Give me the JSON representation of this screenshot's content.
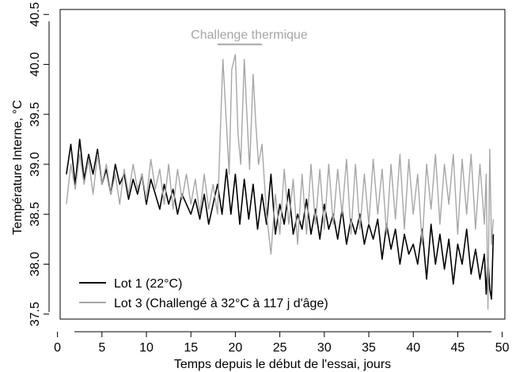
{
  "chart_data": {
    "type": "line",
    "title": "",
    "xlabel": "Temps depuis le début de l'essai, jours",
    "ylabel": "Température Interne, °C",
    "xlim": [
      0.3,
      50.3
    ],
    "ylim": [
      37.45,
      40.55
    ],
    "x_ticks": [
      0,
      5,
      10,
      15,
      20,
      25,
      30,
      35,
      40,
      45,
      50
    ],
    "y_ticks": [
      37.5,
      38.0,
      38.5,
      39.0,
      39.5,
      40.0,
      40.5
    ],
    "x_tick_labels": [
      "0",
      "5",
      "10",
      "15",
      "20",
      "25",
      "30",
      "35",
      "40",
      "45",
      "50"
    ],
    "y_tick_labels": [
      "37.5",
      "38.0",
      "38.5",
      "39.0",
      "39.5",
      "40.0",
      "40.5"
    ],
    "grid": false,
    "legend_position": "bottom-left",
    "annotation": {
      "text": "Challenge thermique",
      "x_start": 18,
      "x_end": 23,
      "y": 40.2,
      "color": "#a6a6a6"
    },
    "series": [
      {
        "name": "Lot 1 (22°C)",
        "color": "#000000",
        "x": [
          1,
          1.5,
          2,
          2.5,
          3,
          3.5,
          4,
          4.5,
          5,
          5.5,
          6,
          6.5,
          7,
          7.5,
          8,
          8.5,
          9,
          9.5,
          10,
          10.5,
          11,
          11.5,
          12,
          12.5,
          13,
          13.5,
          14,
          14.5,
          15,
          15.5,
          16,
          16.5,
          17,
          17.5,
          18,
          18.5,
          19,
          19.5,
          20,
          20.5,
          21,
          21.5,
          22,
          22.5,
          23,
          23.5,
          24,
          24.5,
          25,
          25.5,
          26,
          26.5,
          27,
          27.5,
          28,
          28.5,
          29,
          29.5,
          30,
          30.5,
          31,
          31.5,
          32,
          32.5,
          33,
          33.5,
          34,
          34.5,
          35,
          35.5,
          36,
          36.5,
          37,
          37.5,
          38,
          38.5,
          39,
          39.5,
          40,
          40.5,
          41,
          41.5,
          42,
          42.5,
          43,
          43.5,
          44,
          44.5,
          45,
          45.5,
          46,
          46.5,
          47,
          47.5,
          48,
          48.2,
          48.4,
          48.6,
          48.8,
          49
        ],
        "y": [
          38.9,
          39.2,
          38.8,
          39.25,
          38.85,
          39.1,
          38.9,
          39.15,
          38.8,
          38.95,
          38.7,
          39.0,
          38.8,
          38.9,
          38.65,
          38.85,
          38.7,
          38.9,
          38.6,
          38.85,
          38.7,
          38.55,
          38.8,
          38.6,
          38.75,
          38.5,
          38.7,
          38.6,
          38.5,
          38.65,
          38.45,
          38.7,
          38.4,
          38.6,
          38.8,
          38.5,
          38.95,
          38.5,
          38.9,
          38.4,
          38.85,
          38.45,
          38.8,
          38.35,
          38.7,
          38.4,
          38.9,
          38.3,
          38.6,
          38.4,
          38.75,
          38.3,
          38.5,
          38.35,
          38.65,
          38.3,
          38.55,
          38.25,
          38.6,
          38.35,
          38.5,
          38.25,
          38.55,
          38.2,
          38.45,
          38.3,
          38.5,
          38.2,
          38.4,
          38.25,
          38.45,
          38.05,
          38.4,
          38.15,
          38.35,
          38.0,
          38.3,
          38.1,
          38.2,
          38.0,
          38.35,
          37.85,
          38.4,
          38.0,
          38.3,
          37.95,
          38.25,
          37.8,
          38.2,
          38.0,
          38.35,
          37.9,
          38.15,
          37.85,
          38.1,
          37.7,
          38.05,
          37.75,
          37.65,
          38.3
        ]
      },
      {
        "name": "Lot 3 (Challengé à 32°C à 117 j d'âge)",
        "color": "#a6a6a6",
        "x": [
          1,
          1.5,
          2,
          2.5,
          3,
          3.5,
          4,
          4.5,
          5,
          5.5,
          6,
          6.5,
          7,
          7.5,
          8,
          8.5,
          9,
          9.5,
          10,
          10.5,
          11,
          11.5,
          12,
          12.5,
          13,
          13.5,
          14,
          14.5,
          15,
          15.5,
          16,
          16.5,
          17,
          17.5,
          18,
          18.3,
          18.6,
          19,
          19.3,
          19.6,
          20,
          20.3,
          20.6,
          21,
          21.3,
          21.6,
          22,
          22.3,
          22.6,
          23,
          23.5,
          24,
          24.5,
          25,
          25.5,
          26,
          26.5,
          27,
          27.5,
          28,
          28.5,
          29,
          29.5,
          30,
          30.5,
          31,
          31.5,
          32,
          32.5,
          33,
          33.5,
          34,
          34.5,
          35,
          35.5,
          36,
          36.5,
          37,
          37.5,
          38,
          38.5,
          39,
          39.5,
          40,
          40.5,
          41,
          41.5,
          42,
          42.5,
          43,
          43.5,
          44,
          44.5,
          45,
          45.5,
          46,
          46.5,
          47,
          47.5,
          48,
          48.2,
          48.4,
          48.6,
          48.8,
          49
        ],
        "y": [
          38.6,
          39.0,
          38.75,
          39.1,
          38.8,
          39.05,
          38.7,
          39.1,
          38.8,
          39.0,
          38.7,
          38.9,
          38.6,
          38.95,
          38.7,
          39.0,
          38.75,
          38.9,
          38.65,
          39.05,
          38.75,
          38.95,
          38.6,
          39.0,
          38.55,
          38.95,
          38.65,
          38.9,
          38.6,
          38.85,
          38.5,
          38.9,
          38.55,
          38.8,
          38.5,
          39.3,
          40.05,
          39.4,
          38.9,
          39.95,
          40.1,
          39.3,
          39.0,
          40.05,
          39.5,
          38.95,
          39.9,
          39.4,
          39.0,
          39.2,
          38.5,
          38.1,
          38.7,
          38.3,
          38.95,
          38.4,
          38.85,
          38.2,
          38.9,
          38.3,
          39.0,
          38.4,
          38.95,
          38.35,
          39.0,
          38.4,
          38.95,
          38.5,
          39.05,
          38.3,
          39.0,
          38.35,
          38.9,
          38.4,
          39.05,
          38.5,
          38.95,
          38.3,
          39.0,
          38.45,
          39.1,
          38.35,
          39.05,
          38.5,
          38.9,
          38.2,
          39.0,
          38.55,
          39.1,
          38.4,
          39.0,
          38.6,
          39.1,
          38.3,
          39.05,
          38.5,
          39.1,
          38.35,
          39.0,
          38.4,
          38.9,
          37.55,
          39.15,
          38.2,
          38.45
        ]
      }
    ]
  }
}
